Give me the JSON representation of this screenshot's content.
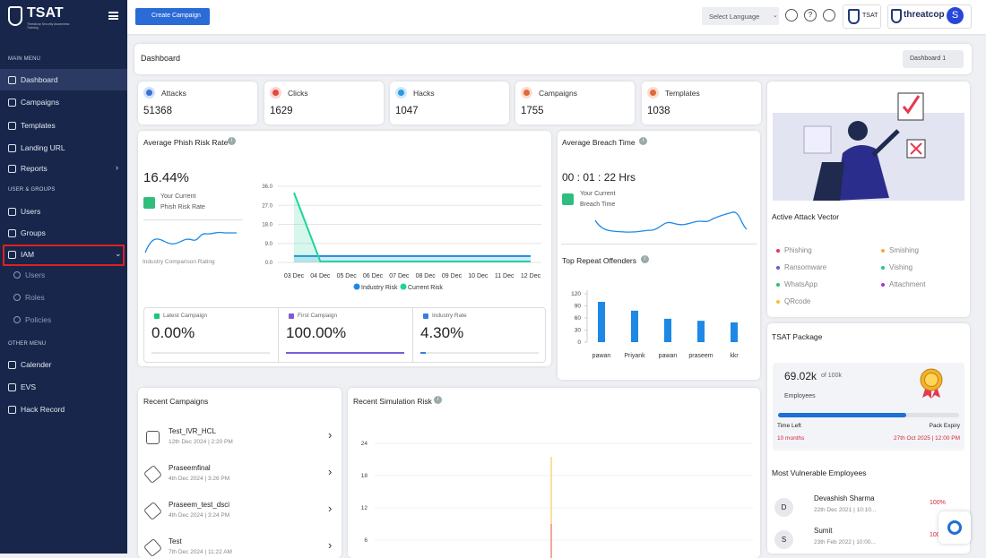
{
  "sidebar": {
    "brand": "TSAT",
    "brand_tagline": "Threatcop Security Awareness Training",
    "main_menu": {
      "heading": "MAIN MENU",
      "items": [
        "Dashboard",
        "Campaigns",
        "Templates",
        "Landing URL",
        "Reports"
      ]
    },
    "user_groups": {
      "heading": "USER & GROUPS",
      "items": [
        "Users",
        "Groups",
        "IAM"
      ]
    },
    "iam_items": [
      "Users",
      "Roles",
      "Policies"
    ],
    "other_menu": {
      "heading": "OTHER MENU",
      "items": [
        "Calender",
        "EVS",
        "Hack Record"
      ]
    }
  },
  "topbar": {
    "create_button": "Create Campaign",
    "language": "Select Language",
    "tsat_logo": "TSAT",
    "threatcop_logo": "threatcop",
    "avatar": "S"
  },
  "header": {
    "title": "Dashboard",
    "dropdown": "Dashboard 1"
  },
  "stats": [
    {
      "label": "Attacks",
      "value": "51368"
    },
    {
      "label": "Clicks",
      "value": "1629"
    },
    {
      "label": "Hacks",
      "value": "1047"
    },
    {
      "label": "Campaigns",
      "value": "1755"
    },
    {
      "label": "Templates",
      "value": "1038"
    }
  ],
  "phish_risk": {
    "title": "Average Phish Risk Rate",
    "value": "16.44%",
    "caption_1": "Your Current",
    "caption_2": "Phish Risk Rate",
    "comparison": "Industry Comparison Rating",
    "chart": {
      "type": "line",
      "categories": [
        "03 Dec",
        "04 Dec",
        "05 Dec",
        "06 Dec",
        "07 Dec",
        "08 Dec",
        "09 Dec",
        "10 Dec",
        "11 Dec",
        "12 Dec"
      ],
      "series": [
        {
          "name": "Industry Risk",
          "color": "#1e88e5",
          "values": [
            3,
            3,
            3,
            3,
            3,
            3,
            3,
            3,
            3,
            3
          ]
        },
        {
          "name": "Current Risk",
          "color": "#1fd49b",
          "values": [
            33,
            0.5,
            0.5,
            0.5,
            0.5,
            0.5,
            0.5,
            0.5,
            0.5,
            0.5
          ]
        }
      ],
      "ylim": [
        0,
        36
      ],
      "yticks": [
        {
          "value": 0,
          "label": "0.0"
        },
        {
          "value": 9,
          "label": "9.0"
        },
        {
          "value": 18,
          "label": "18.0"
        },
        {
          "value": 27,
          "label": "27.0"
        },
        {
          "value": 36,
          "label": "36.0"
        }
      ]
    },
    "boxes": [
      {
        "label": "Latest Campaign",
        "value": "0.00%",
        "color": "#1fc47a"
      },
      {
        "label": "First Campaign",
        "value": "100.00%",
        "color": "#7c5cd6"
      },
      {
        "label": "Industry Rate",
        "value": "4.30%",
        "color": "#3d7be0"
      }
    ]
  },
  "breach": {
    "title": "Average Breach Time",
    "value": "00 : 01 : 22 Hrs",
    "caption_1": "Your Current",
    "caption_2": "Breach Time"
  },
  "repeat_offenders": {
    "title": "Top Repeat Offenders",
    "chart": {
      "type": "bar",
      "categories": [
        "pawan",
        "Priyank",
        "pawan",
        "praseem",
        "kkr"
      ],
      "values": [
        100,
        78,
        58,
        53,
        49
      ],
      "color": "#1e88e5",
      "ylim": [
        0,
        120
      ],
      "yticks": [
        0,
        30,
        60,
        90,
        120
      ]
    }
  },
  "attack_vector": {
    "title": "Active Attack Vector",
    "items": [
      {
        "name": "Phishing",
        "color": "#e53950"
      },
      {
        "name": "Smishing",
        "color": "#f2a93b"
      },
      {
        "name": "Ransomware",
        "color": "#5b5fd6"
      },
      {
        "name": "Vishing",
        "color": "#27c2a0"
      },
      {
        "name": "WhatsApp",
        "color": "#25c36b"
      },
      {
        "name": "Attachment",
        "color": "#9b36e0"
      },
      {
        "name": "QRcode",
        "color": "#f2c23b"
      }
    ]
  },
  "package": {
    "title": "TSAT Package",
    "used": "69.02k",
    "total": "of 100k",
    "unit": "Employees",
    "time_left_label": "Time Left",
    "expiry_label": "Pack Expiry",
    "time_left": "10 months",
    "expiry": "27th Oct 2025 | 12:00 PM"
  },
  "vulnerable": {
    "title": "Most Vulnerable Employees",
    "rows": [
      {
        "initial": "D",
        "name": "Devashish Sharma",
        "date": "22th Dec 2021 | 10:10...",
        "score": "100%"
      },
      {
        "initial": "S",
        "name": "Sumit",
        "date": "23th Feb 2022 | 10:00...",
        "score": "100..."
      }
    ]
  },
  "recent_campaigns": {
    "title": "Recent Campaigns",
    "rows": [
      {
        "name": "Test_IVR_HCL",
        "date": "12th Dec 2024 | 2:20 PM"
      },
      {
        "name": "Praseemfinal",
        "date": "4th Dec 2024 | 3:26 PM"
      },
      {
        "name": "Praseem_test_dsci",
        "date": "4th Dec 2024 | 3:24 PM"
      },
      {
        "name": "Test",
        "date": "7th Dec 2024 | 11:22 AM"
      }
    ]
  },
  "simulation_risk": {
    "title": "Recent Simulation Risk",
    "chart": {
      "ylim": [
        0,
        26
      ],
      "yticks": [
        6,
        12,
        18,
        24
      ],
      "spikes": [
        {
          "color": "#f2c23b",
          "value": 21.5
        },
        {
          "color": "#e5533a",
          "value": 9
        }
      ]
    }
  }
}
